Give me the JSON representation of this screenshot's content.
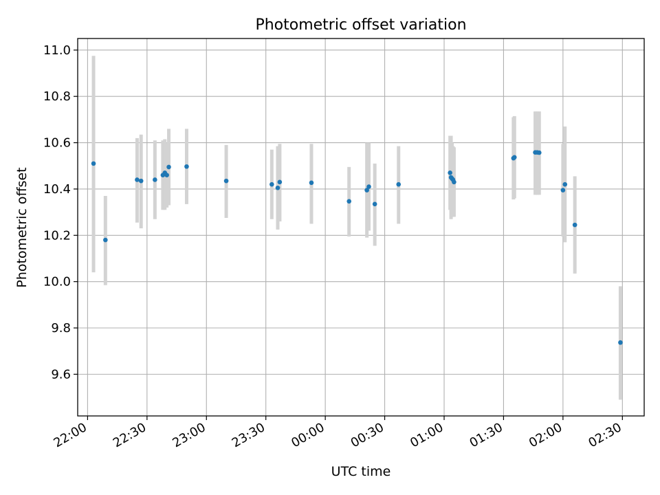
{
  "chart_data": {
    "type": "scatter",
    "title": "Photometric offset variation",
    "xlabel": "UTC time",
    "ylabel": "Photometric offset",
    "grid": true,
    "legend": "none",
    "xlim": [
      "21:55",
      "02:41"
    ],
    "ylim": [
      9.42,
      11.05
    ],
    "xticks": [
      "22:00",
      "22:30",
      "23:00",
      "23:30",
      "00:00",
      "00:30",
      "01:00",
      "01:30",
      "02:00",
      "02:30"
    ],
    "yticks": [
      "9.6",
      "9.8",
      "10.0",
      "10.2",
      "10.4",
      "10.6",
      "10.8",
      "11.0"
    ],
    "points": [
      {
        "t": "22:03",
        "y": 10.51,
        "lo": 10.04,
        "hi": 10.975
      },
      {
        "t": "22:09",
        "y": 10.18,
        "lo": 9.985,
        "hi": 10.37
      },
      {
        "t": "22:25",
        "y": 10.44,
        "lo": 10.255,
        "hi": 10.62
      },
      {
        "t": "22:27",
        "y": 10.435,
        "lo": 10.23,
        "hi": 10.635
      },
      {
        "t": "22:34",
        "y": 10.44,
        "lo": 10.27,
        "hi": 10.61
      },
      {
        "t": "22:38",
        "y": 10.46,
        "lo": 10.31,
        "hi": 10.61
      },
      {
        "t": "22:39",
        "y": 10.47,
        "lo": 10.31,
        "hi": 10.615
      },
      {
        "t": "22:40",
        "y": 10.46,
        "lo": 10.32,
        "hi": 10.6
      },
      {
        "t": "22:41",
        "y": 10.495,
        "lo": 10.33,
        "hi": 10.66
      },
      {
        "t": "22:50",
        "y": 10.497,
        "lo": 10.335,
        "hi": 10.66
      },
      {
        "t": "23:10",
        "y": 10.435,
        "lo": 10.275,
        "hi": 10.59
      },
      {
        "t": "23:33",
        "y": 10.42,
        "lo": 10.27,
        "hi": 10.57
      },
      {
        "t": "23:36",
        "y": 10.405,
        "lo": 10.225,
        "hi": 10.585
      },
      {
        "t": "23:37",
        "y": 10.43,
        "lo": 10.26,
        "hi": 10.595
      },
      {
        "t": "23:53",
        "y": 10.427,
        "lo": 10.25,
        "hi": 10.595
      },
      {
        "t": "00:12",
        "y": 10.347,
        "lo": 10.195,
        "hi": 10.495
      },
      {
        "t": "00:21",
        "y": 10.395,
        "lo": 10.19,
        "hi": 10.6
      },
      {
        "t": "00:22",
        "y": 10.41,
        "lo": 10.22,
        "hi": 10.6
      },
      {
        "t": "00:25",
        "y": 10.335,
        "lo": 10.155,
        "hi": 10.51
      },
      {
        "t": "00:37",
        "y": 10.42,
        "lo": 10.25,
        "hi": 10.585
      },
      {
        "t": "01:03",
        "y": 10.47,
        "lo": 10.31,
        "hi": 10.63
      },
      {
        "t": "01:03:30",
        "y": 10.45,
        "lo": 10.27,
        "hi": 10.63
      },
      {
        "t": "01:04",
        "y": 10.445,
        "lo": 10.29,
        "hi": 10.6
      },
      {
        "t": "01:04:30",
        "y": 10.44,
        "lo": 10.28,
        "hi": 10.585
      },
      {
        "t": "01:05",
        "y": 10.43,
        "lo": 10.28,
        "hi": 10.58
      },
      {
        "t": "01:35",
        "y": 10.533,
        "lo": 10.355,
        "hi": 10.71
      },
      {
        "t": "01:35:30",
        "y": 10.537,
        "lo": 10.36,
        "hi": 10.715
      },
      {
        "t": "01:46",
        "y": 10.558,
        "lo": 10.375,
        "hi": 10.735
      },
      {
        "t": "01:47",
        "y": 10.558,
        "lo": 10.375,
        "hi": 10.735
      },
      {
        "t": "01:48",
        "y": 10.557,
        "lo": 10.375,
        "hi": 10.735
      },
      {
        "t": "02:00",
        "y": 10.395,
        "lo": 10.195,
        "hi": 10.595
      },
      {
        "t": "02:01",
        "y": 10.42,
        "lo": 10.17,
        "hi": 10.67
      },
      {
        "t": "02:06",
        "y": 10.245,
        "lo": 10.035,
        "hi": 10.455
      },
      {
        "t": "02:29",
        "y": 9.737,
        "lo": 9.49,
        "hi": 9.98
      }
    ],
    "colors": {
      "marker": "#1f77b4",
      "errorbar": "#d3d3d3",
      "grid": "#b0b0b0",
      "axes": "#000000"
    }
  }
}
